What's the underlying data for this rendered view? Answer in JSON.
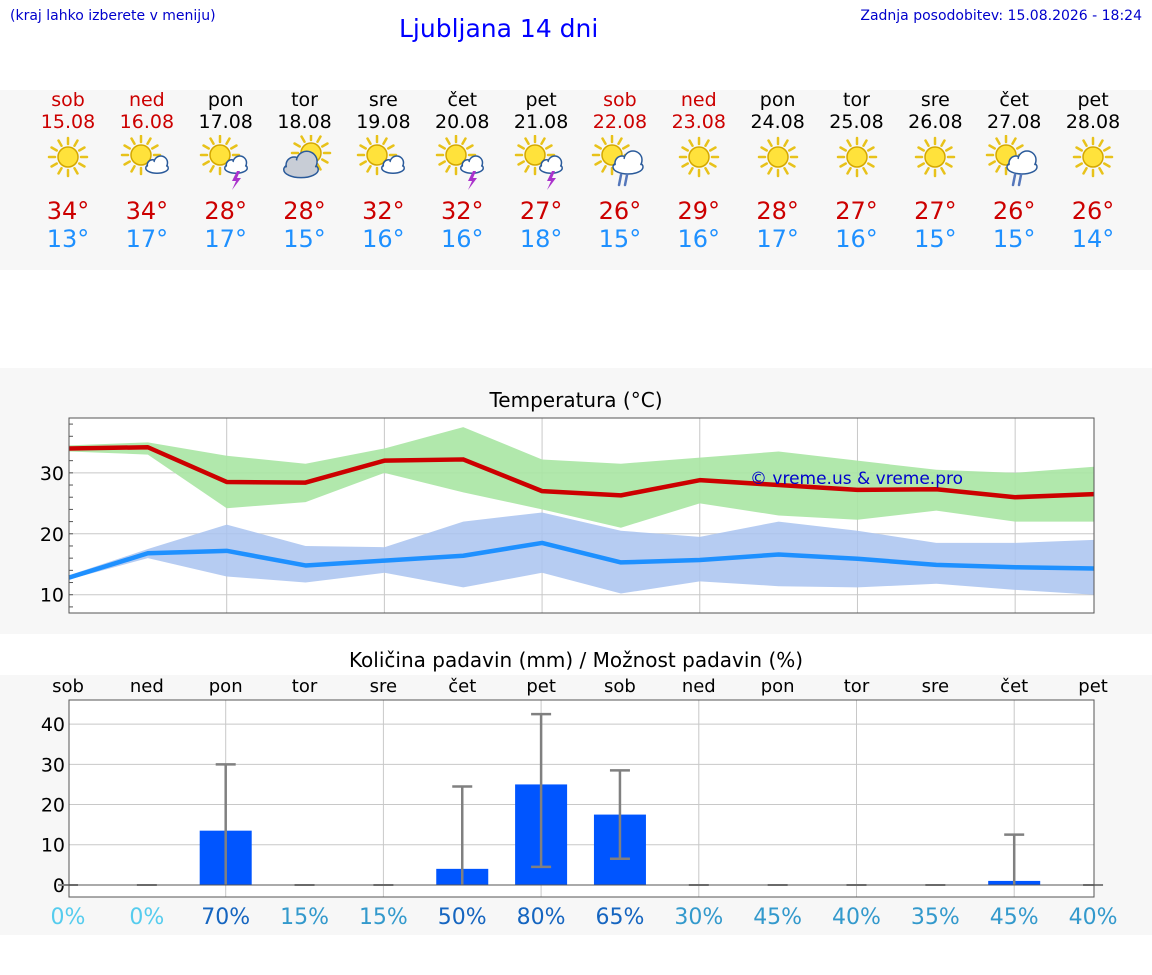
{
  "header": {
    "left_note": "(kraj lahko izberete v meniju)",
    "title": "Ljubljana 14 dni",
    "updated": "Zadnja posodobitev: 15.08.2026 - 18:24"
  },
  "days": [
    {
      "name": "sob",
      "date": "15.08",
      "weekend": true,
      "icon": "sun-icon",
      "tmax": "34°",
      "tmin": "13°"
    },
    {
      "name": "ned",
      "date": "16.08",
      "weekend": true,
      "icon": "sun-cloud-icon",
      "tmax": "34°",
      "tmin": "17°"
    },
    {
      "name": "pon",
      "date": "17.08",
      "weekend": false,
      "icon": "sun-thunder-icon",
      "tmax": "28°",
      "tmin": "17°"
    },
    {
      "name": "tor",
      "date": "18.08",
      "weekend": false,
      "icon": "cloud-sun-icon",
      "tmax": "28°",
      "tmin": "15°"
    },
    {
      "name": "sre",
      "date": "19.08",
      "weekend": false,
      "icon": "sun-cloud-icon",
      "tmax": "32°",
      "tmin": "16°"
    },
    {
      "name": "čet",
      "date": "20.08",
      "weekend": false,
      "icon": "sun-thunder-icon",
      "tmax": "32°",
      "tmin": "16°"
    },
    {
      "name": "pet",
      "date": "21.08",
      "weekend": false,
      "icon": "sun-thunder-icon",
      "tmax": "27°",
      "tmin": "18°"
    },
    {
      "name": "sob",
      "date": "22.08",
      "weekend": true,
      "icon": "sun-rain-icon",
      "tmax": "26°",
      "tmin": "15°"
    },
    {
      "name": "ned",
      "date": "23.08",
      "weekend": true,
      "icon": "sun-icon",
      "tmax": "29°",
      "tmin": "16°"
    },
    {
      "name": "pon",
      "date": "24.08",
      "weekend": false,
      "icon": "sun-icon",
      "tmax": "28°",
      "tmin": "17°"
    },
    {
      "name": "tor",
      "date": "25.08",
      "weekend": false,
      "icon": "sun-icon",
      "tmax": "27°",
      "tmin": "16°"
    },
    {
      "name": "sre",
      "date": "26.08",
      "weekend": false,
      "icon": "sun-icon",
      "tmax": "27°",
      "tmin": "15°"
    },
    {
      "name": "čet",
      "date": "27.08",
      "weekend": false,
      "icon": "sun-rain-icon",
      "tmax": "26°",
      "tmin": "15°"
    },
    {
      "name": "pet",
      "date": "28.08",
      "weekend": false,
      "icon": "sun-icon",
      "tmax": "26°",
      "tmin": "14°"
    }
  ],
  "colors": {
    "weekend": "#cc0000",
    "tmax": "#cc0000",
    "tmin": "#1e90ff",
    "max_band": "#a8e6a3",
    "min_band": "#a9c3f0",
    "bar": "#0055ff",
    "whisker": "#808080"
  },
  "chart_data": [
    {
      "type": "line",
      "title": "Temperatura (°C)",
      "watermark": "© vreme.us & vreme.pro",
      "ylim": [
        7,
        39
      ],
      "yticks": [
        10,
        20,
        30
      ],
      "grid": true,
      "series": [
        {
          "values": [
            34,
            34.2,
            28.5,
            28.4,
            32,
            32.2,
            27,
            26.3,
            28.8,
            28,
            27.2,
            27.3,
            26,
            26.5
          ],
          "band_upper": [
            34.5,
            35,
            32.8,
            31.5,
            34,
            37.5,
            32.2,
            31.5,
            32.5,
            33.5,
            32,
            30.5,
            30,
            31
          ],
          "band_lower": [
            33.5,
            33,
            24.2,
            25.2,
            30,
            26.8,
            24,
            21,
            25,
            23,
            22.3,
            23.8,
            22,
            22
          ]
        },
        {
          "values": [
            12.8,
            16.8,
            17.2,
            14.8,
            15.6,
            16.4,
            18.5,
            15.3,
            15.7,
            16.6,
            15.9,
            14.9,
            14.5,
            14.3
          ],
          "band_upper": [
            13.2,
            17.5,
            21.5,
            18,
            17.8,
            22,
            23.5,
            20.5,
            19.5,
            22,
            20.5,
            18.5,
            18.5,
            19
          ],
          "band_lower": [
            12.5,
            16,
            13,
            12,
            13.6,
            11.2,
            13.6,
            10.2,
            12.2,
            11.4,
            11.2,
            11.8,
            10.8,
            10
          ]
        }
      ]
    },
    {
      "type": "bar",
      "title": "Količina padavin (mm) / Možnost padavin (%)",
      "categories": [
        "sob",
        "ned",
        "pon",
        "tor",
        "sre",
        "čet",
        "pet",
        "sob",
        "ned",
        "pon",
        "tor",
        "sre",
        "čet",
        "pet"
      ],
      "ylim": [
        -3,
        46
      ],
      "yticks": [
        0,
        10,
        20,
        30,
        40
      ],
      "values": [
        0,
        0,
        13.5,
        0,
        0,
        4,
        25,
        17.5,
        0,
        0,
        0,
        0,
        1,
        0
      ],
      "whisker_low": [
        0,
        0,
        0,
        0,
        0,
        0,
        4.5,
        6.5,
        0,
        0,
        0,
        0,
        0,
        0
      ],
      "whisker_high": [
        0,
        0,
        30,
        0,
        0,
        24.5,
        42.5,
        28.5,
        0,
        0,
        0,
        0,
        12.5,
        0
      ],
      "probability": [
        "0%",
        "0%",
        "70%",
        "15%",
        "15%",
        "50%",
        "80%",
        "65%",
        "30%",
        "45%",
        "40%",
        "35%",
        "45%",
        "40%"
      ],
      "probability_colors": [
        "#55ccee",
        "#55ccee",
        "#1565c0",
        "#3399cc",
        "#3399cc",
        "#1565c0",
        "#1565c0",
        "#1565c0",
        "#3399cc",
        "#3399cc",
        "#3399cc",
        "#3399cc",
        "#3399cc",
        "#3399cc"
      ]
    }
  ]
}
